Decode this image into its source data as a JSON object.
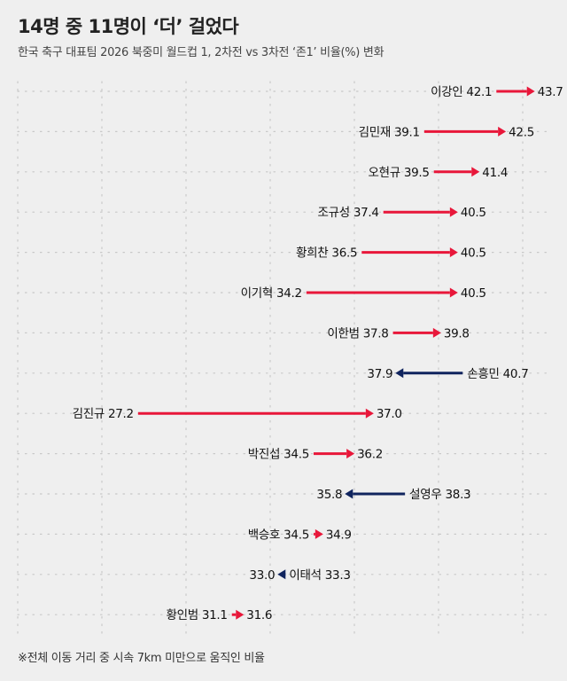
{
  "title": "14명 중 11명이 ‘더’ 걸었다",
  "subtitle": "한국 축구 대표팀 2026 북중미 월드컵 1, 2차전 vs 3차전 ‘존1’ 비율(%) 변화",
  "footnote": "※전체 이동 거리 중 시속 7km 미만으로 움직인 비율",
  "colors": {
    "increase": "#e8173a",
    "decrease": "#10245e",
    "grid": "#c8c8c8",
    "background": "#efefef"
  },
  "chart_data": {
    "type": "dumbbell-arrow",
    "title": "14명 중 11명이 ‘더’ 걸었다",
    "subtitle": "한국 축구 대표팀 2026 북중미 월드컵 1, 2차전 vs 3차전 ‘존1’ 비율(%) 변화",
    "grid": true,
    "xlim": [
      24,
      45
    ],
    "series": [
      {
        "name": "이강인",
        "start": 42.1,
        "end": 43.7
      },
      {
        "name": "김민재",
        "start": 39.1,
        "end": 42.5
      },
      {
        "name": "오현규",
        "start": 39.5,
        "end": 41.4
      },
      {
        "name": "조규성",
        "start": 37.4,
        "end": 40.5
      },
      {
        "name": "황희찬",
        "start": 36.5,
        "end": 40.5
      },
      {
        "name": "이기혁",
        "start": 34.2,
        "end": 40.5
      },
      {
        "name": "이한범",
        "start": 37.8,
        "end": 39.8
      },
      {
        "name": "손흥민",
        "start": 40.7,
        "end": 37.9
      },
      {
        "name": "김진규",
        "start": 27.2,
        "end": 37.0
      },
      {
        "name": "박진섭",
        "start": 34.5,
        "end": 36.2
      },
      {
        "name": "설영우",
        "start": 38.3,
        "end": 35.8
      },
      {
        "name": "백승호",
        "start": 34.5,
        "end": 34.9
      },
      {
        "name": "이태석",
        "start": 33.3,
        "end": 33.0
      },
      {
        "name": "황인범",
        "start": 31.1,
        "end": 31.6
      }
    ]
  }
}
